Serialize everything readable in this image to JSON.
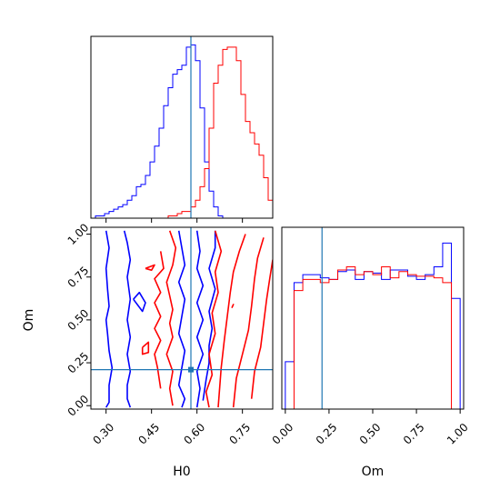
{
  "chart_data": {
    "type": "corner",
    "parameters": [
      "H0",
      "Om"
    ],
    "truth": {
      "H0": 0.58,
      "Om": 0.21,
      "color": "#1f77b4"
    },
    "series": [
      {
        "color": "#0000ff"
      },
      {
        "color": "#ff0000"
      }
    ],
    "panels": [
      {
        "id": "H0-marginal",
        "type": "histogram",
        "xlim": [
          0.25,
          0.85
        ],
        "bin_edges": [
          0.25,
          0.265,
          0.28,
          0.295,
          0.31,
          0.325,
          0.34,
          0.355,
          0.37,
          0.385,
          0.4,
          0.415,
          0.43,
          0.445,
          0.46,
          0.475,
          0.49,
          0.505,
          0.52,
          0.535,
          0.55,
          0.565,
          0.58,
          0.595,
          0.61,
          0.625,
          0.64,
          0.655,
          0.67,
          0.685,
          0.7,
          0.715,
          0.73,
          0.745,
          0.76,
          0.775,
          0.79,
          0.805,
          0.82,
          0.835,
          0.85
        ],
        "counts": [
          [
            0,
            1,
            1,
            2,
            3,
            4,
            5,
            6,
            8,
            10,
            14,
            15,
            19,
            25,
            32,
            40,
            50,
            58,
            64,
            66,
            68,
            76,
            77,
            70,
            49,
            25,
            12,
            5,
            1,
            0,
            0,
            0,
            0,
            0,
            0,
            0,
            0,
            0,
            0,
            0
          ],
          [
            0,
            0,
            0,
            0,
            0,
            0,
            0,
            0,
            0,
            0,
            0,
            0,
            0,
            0,
            0,
            0,
            0,
            1,
            1,
            2,
            3,
            3,
            5,
            8,
            14,
            22,
            40,
            60,
            68,
            75,
            76,
            76,
            70,
            55,
            43,
            38,
            33,
            28,
            18,
            8
          ]
        ]
      },
      {
        "id": "Om-marginal",
        "type": "histogram",
        "xlim": [
          -0.02,
          1.02
        ],
        "bin_edges": [
          -0.02,
          0.0,
          0.05,
          0.1,
          0.15,
          0.2,
          0.25,
          0.3,
          0.35,
          0.4,
          0.45,
          0.5,
          0.55,
          0.6,
          0.65,
          0.7,
          0.75,
          0.8,
          0.85,
          0.9,
          0.95,
          1.0
        ],
        "counts": [
          [
            0,
            30,
            80,
            85,
            85,
            83,
            82,
            87,
            88,
            82,
            87,
            86,
            82,
            88,
            88,
            84,
            82,
            85,
            90,
            105,
            70
          ],
          [
            0,
            0,
            75,
            82,
            82,
            80,
            82,
            88,
            90,
            85,
            87,
            85,
            90,
            83,
            87,
            85,
            84,
            84,
            83,
            80,
            0
          ]
        ]
      },
      {
        "id": "H0-Om-joint",
        "type": "contour",
        "xlim": [
          0.25,
          0.85
        ],
        "ylim": [
          -0.02,
          1.04
        ],
        "contours": [
          {
            "series": 0,
            "x": [
              0.3,
              0.31,
              0.3,
              0.305,
              0.31,
              0.3,
              0.305,
              0.31,
              0.32,
              0.31,
              0.31,
              0.3
            ],
            "y": [
              1.02,
              0.92,
              0.8,
              0.68,
              0.58,
              0.5,
              0.42,
              0.32,
              0.22,
              0.12,
              0.02,
              -0.01
            ]
          },
          {
            "series": 0,
            "x": [
              0.36,
              0.37,
              0.38,
              0.37,
              0.38,
              0.37,
              0.38,
              0.37,
              0.38,
              0.37,
              0.37,
              0.38
            ],
            "y": [
              1.02,
              0.95,
              0.85,
              0.75,
              0.62,
              0.5,
              0.4,
              0.3,
              0.2,
              0.12,
              0.04,
              -0.01
            ]
          },
          {
            "series": 0,
            "x": [
              0.39,
              0.41,
              0.43,
              0.42,
              0.39
            ],
            "y": [
              0.62,
              0.66,
              0.6,
              0.55,
              0.62
            ]
          },
          {
            "series": 0,
            "x": [
              0.54,
              0.55,
              0.56,
              0.54,
              0.56,
              0.55,
              0.54,
              0.56,
              0.55,
              0.54,
              0.56,
              0.55
            ],
            "y": [
              1.02,
              0.92,
              0.82,
              0.72,
              0.62,
              0.52,
              0.42,
              0.32,
              0.22,
              0.12,
              0.04,
              -0.01
            ]
          },
          {
            "series": 0,
            "x": [
              0.6,
              0.61,
              0.6,
              0.62,
              0.6,
              0.62,
              0.6,
              0.62,
              0.6,
              0.61,
              0.6
            ],
            "y": [
              1.02,
              0.9,
              0.8,
              0.7,
              0.6,
              0.5,
              0.4,
              0.3,
              0.2,
              0.1,
              -0.01
            ]
          },
          {
            "series": 0,
            "x": [
              0.66,
              0.66,
              0.64,
              0.66,
              0.64,
              0.65,
              0.64,
              0.64,
              0.63,
              0.62
            ],
            "y": [
              1.02,
              0.92,
              0.8,
              0.68,
              0.55,
              0.45,
              0.35,
              0.25,
              0.15,
              0.03
            ]
          },
          {
            "series": 1,
            "x": [
              0.51,
              0.53,
              0.52,
              0.5,
              0.51,
              0.52,
              0.51,
              0.52,
              0.5,
              0.52,
              0.51,
              0.52
            ],
            "y": [
              1.02,
              0.92,
              0.82,
              0.72,
              0.64,
              0.56,
              0.48,
              0.4,
              0.3,
              0.2,
              0.1,
              0.0
            ]
          },
          {
            "series": 1,
            "x": [
              0.48,
              0.49,
              0.46,
              0.48,
              0.46,
              0.48,
              0.46,
              0.48,
              0.46,
              0.47,
              0.48
            ],
            "y": [
              0.9,
              0.8,
              0.74,
              0.66,
              0.6,
              0.52,
              0.45,
              0.38,
              0.3,
              0.22,
              0.1
            ]
          },
          {
            "series": 1,
            "x": [
              0.43,
              0.46,
              0.45,
              0.43
            ],
            "y": [
              0.8,
              0.82,
              0.79,
              0.8
            ]
          },
          {
            "series": 1,
            "x": [
              0.42,
              0.44,
              0.44,
              0.42,
              0.42
            ],
            "y": [
              0.34,
              0.37,
              0.31,
              0.3,
              0.34
            ]
          },
          {
            "series": 1,
            "x": [
              0.66,
              0.68,
              0.66,
              0.67,
              0.65,
              0.66,
              0.64,
              0.65,
              0.63,
              0.64
            ],
            "y": [
              1.02,
              0.9,
              0.78,
              0.66,
              0.54,
              0.42,
              0.3,
              0.18,
              0.08,
              -0.01
            ]
          },
          {
            "series": 1,
            "x": [
              0.76,
              0.74,
              0.72,
              0.71,
              0.7,
              0.69,
              0.68,
              0.67
            ],
            "y": [
              1.0,
              0.9,
              0.78,
              0.66,
              0.52,
              0.38,
              0.22,
              -0.01
            ]
          },
          {
            "series": 1,
            "x": [
              0.82,
              0.8,
              0.79,
              0.78,
              0.77,
              0.75,
              0.73,
              0.72
            ],
            "y": [
              0.98,
              0.86,
              0.74,
              0.58,
              0.44,
              0.3,
              0.16,
              -0.01
            ]
          },
          {
            "series": 1,
            "x": [
              0.85,
              0.84,
              0.83,
              0.82,
              0.81,
              0.79,
              0.78
            ],
            "y": [
              0.85,
              0.74,
              0.62,
              0.48,
              0.34,
              0.2,
              0.04
            ]
          },
          {
            "series": 1,
            "x": [
              0.715,
              0.72,
              0.715
            ],
            "y": [
              0.57,
              0.59,
              0.57
            ]
          }
        ]
      }
    ],
    "xlabel_H0": "H0",
    "xlabel_Om": "Om",
    "ylabel_Om": "Om",
    "ticks_H0": [
      "0.30",
      "0.45",
      "0.60",
      "0.75"
    ],
    "tick_values_H0": [
      0.3,
      0.45,
      0.6,
      0.75
    ],
    "ticks_Om": [
      "0.00",
      "0.25",
      "0.50",
      "0.75",
      "1.00"
    ],
    "tick_values_Om": [
      0.0,
      0.25,
      0.5,
      0.75,
      1.0
    ]
  }
}
